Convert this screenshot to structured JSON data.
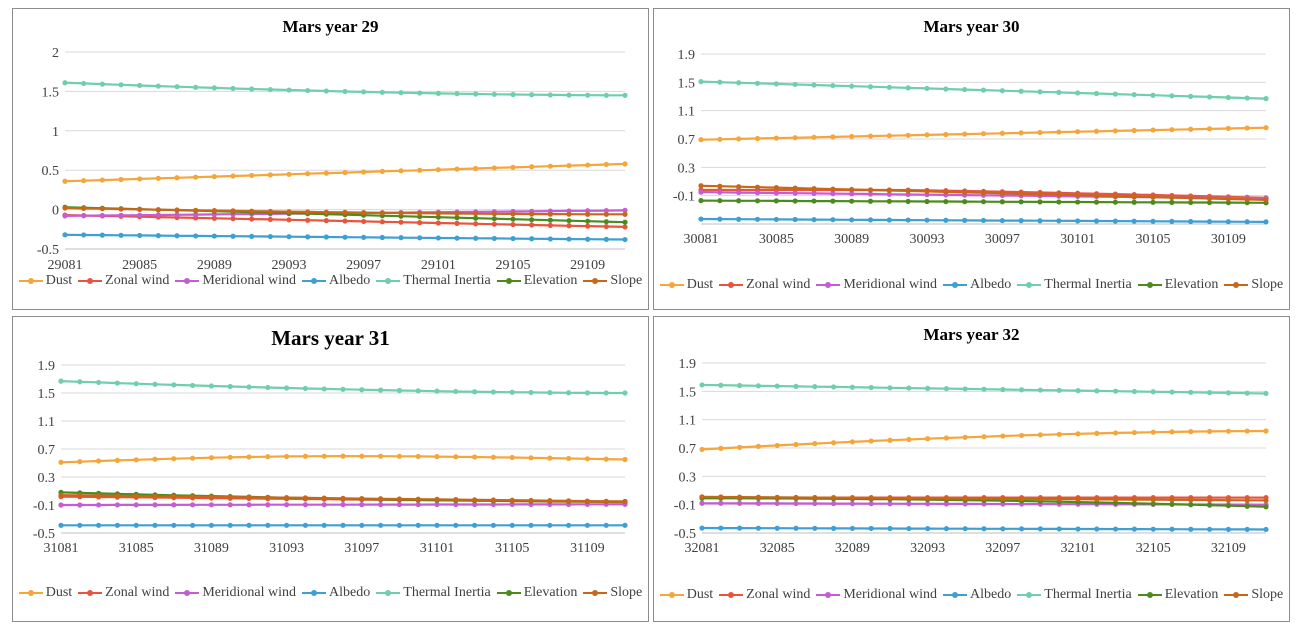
{
  "series_colors": {
    "Dust": "#f5a53a",
    "Zonal wind": "#e8553e",
    "Meridional wind": "#c65bd6",
    "Albedo": "#3e9fd2",
    "Thermal Inertia": "#6ecfaa",
    "Elevation": "#4c8a1e",
    "Slope": "#c8661a"
  },
  "chart_data": [
    {
      "type": "line",
      "title": "Mars year 29",
      "x": [
        29081,
        29082,
        29083,
        29084,
        29085,
        29086,
        29087,
        29088,
        29089,
        29090,
        29091,
        29092,
        29093,
        29094,
        29095,
        29096,
        29097,
        29098,
        29099,
        29100,
        29101,
        29102,
        29103,
        29104,
        29105,
        29106,
        29107,
        29108,
        29109,
        29110,
        29111
      ],
      "x_tick_labels": [
        "29081",
        "29085",
        "29089",
        "29093",
        "29097",
        "29101",
        "29105",
        "29109"
      ],
      "y_ticks": [
        -0.5,
        0,
        0.5,
        1,
        1.5,
        2
      ],
      "y_tick_labels": [
        "-0.5",
        "0",
        "0.5",
        "1",
        "1.5",
        "2"
      ],
      "ylim": [
        -0.5,
        2
      ],
      "grid": "horizontal",
      "legend": "bottom",
      "series": [
        {
          "name": "Dust",
          "start": 0.36,
          "end": 0.58,
          "shape": "linear"
        },
        {
          "name": "Zonal wind",
          "start": -0.07,
          "end": -0.22,
          "shape": "linear"
        },
        {
          "name": "Meridional wind",
          "start": -0.08,
          "end": -0.01,
          "shape": "linear"
        },
        {
          "name": "Albedo",
          "start": -0.32,
          "end": -0.38,
          "shape": "linear"
        },
        {
          "name": "Thermal Inertia",
          "start": 1.61,
          "end": 1.45,
          "shape": "decay"
        },
        {
          "name": "Elevation",
          "start": 0.03,
          "end": -0.16,
          "shape": "linear"
        },
        {
          "name": "Slope",
          "start": 0.02,
          "end": -0.06,
          "shape": "decay"
        }
      ]
    },
    {
      "type": "line",
      "title": "Mars year 30",
      "x": [
        30081,
        30082,
        30083,
        30084,
        30085,
        30086,
        30087,
        30088,
        30089,
        30090,
        30091,
        30092,
        30093,
        30094,
        30095,
        30096,
        30097,
        30098,
        30099,
        30100,
        30101,
        30102,
        30103,
        30104,
        30105,
        30106,
        30107,
        30108,
        30109,
        30110,
        30111
      ],
      "x_tick_labels": [
        "30081",
        "30085",
        "30089",
        "30093",
        "30097",
        "30101",
        "30105",
        "30109"
      ],
      "y_ticks": [
        -0.1,
        0.3,
        0.7,
        1.1,
        1.5,
        1.9
      ],
      "y_tick_labels": [
        "-0.1",
        "0.3",
        "0.7",
        "1.1",
        "1.5",
        "1.9"
      ],
      "ylim": [
        -0.5,
        1.9
      ],
      "grid": "horizontal",
      "legend": "bottom",
      "series": [
        {
          "name": "Dust",
          "start": 0.69,
          "end": 0.86,
          "shape": "linear"
        },
        {
          "name": "Zonal wind",
          "start": -0.02,
          "end": -0.13,
          "shape": "plateau"
        },
        {
          "name": "Meridional wind",
          "start": -0.05,
          "end": -0.14,
          "shape": "linear"
        },
        {
          "name": "Albedo",
          "start": -0.43,
          "end": -0.47,
          "shape": "linear"
        },
        {
          "name": "Thermal Inertia",
          "start": 1.51,
          "end": 1.27,
          "shape": "linear"
        },
        {
          "name": "Elevation",
          "start": -0.17,
          "end": -0.2,
          "shape": "linear"
        },
        {
          "name": "Slope",
          "start": 0.04,
          "end": -0.16,
          "shape": "linear"
        }
      ]
    },
    {
      "type": "line",
      "title": "Mars year 31",
      "x": [
        31081,
        31082,
        31083,
        31084,
        31085,
        31086,
        31087,
        31088,
        31089,
        31090,
        31091,
        31092,
        31093,
        31094,
        31095,
        31096,
        31097,
        31098,
        31099,
        31100,
        31101,
        31102,
        31103,
        31104,
        31105,
        31106,
        31107,
        31108,
        31109,
        31110,
        31111
      ],
      "x_tick_labels": [
        "31081",
        "31085",
        "31089",
        "31093",
        "31097",
        "31101",
        "31105",
        "31109"
      ],
      "y_ticks": [
        -0.5,
        -0.1,
        0.3,
        0.7,
        1.1,
        1.5,
        1.9
      ],
      "y_tick_labels": [
        "-0.5",
        "-0.1",
        "0.3",
        "0.7",
        "1.1",
        "1.5",
        "1.9"
      ],
      "ylim": [
        -0.5,
        1.9
      ],
      "grid": "horizontal",
      "legend": "bottom",
      "series": [
        {
          "name": "Dust",
          "start": 0.51,
          "end": 0.55,
          "shape": "hump"
        },
        {
          "name": "Zonal wind",
          "start": 0.02,
          "end": -0.06,
          "shape": "linear"
        },
        {
          "name": "Meridional wind",
          "start": -0.1,
          "end": -0.09,
          "shape": "linear"
        },
        {
          "name": "Albedo",
          "start": -0.39,
          "end": -0.39,
          "shape": "linear"
        },
        {
          "name": "Thermal Inertia",
          "start": 1.67,
          "end": 1.5,
          "shape": "decay"
        },
        {
          "name": "Elevation",
          "start": 0.08,
          "end": -0.05,
          "shape": "decay"
        },
        {
          "name": "Slope",
          "start": 0.04,
          "end": -0.05,
          "shape": "linear"
        }
      ]
    },
    {
      "type": "line",
      "title": "Mars year 32",
      "x": [
        32081,
        32082,
        32083,
        32084,
        32085,
        32086,
        32087,
        32088,
        32089,
        32090,
        32091,
        32092,
        32093,
        32094,
        32095,
        32096,
        32097,
        32098,
        32099,
        32100,
        32101,
        32102,
        32103,
        32104,
        32105,
        32106,
        32107,
        32108,
        32109,
        32110,
        32111
      ],
      "x_tick_labels": [
        "32081",
        "32085",
        "32089",
        "32093",
        "32097",
        "32101",
        "32105",
        "32109"
      ],
      "y_ticks": [
        -0.5,
        -0.1,
        0.3,
        0.7,
        1.1,
        1.5,
        1.9
      ],
      "y_tick_labels": [
        "-0.5",
        "-0.1",
        "0.3",
        "0.7",
        "1.1",
        "1.5",
        "1.9"
      ],
      "ylim": [
        -0.5,
        1.9
      ],
      "grid": "horizontal",
      "legend": "bottom",
      "series": [
        {
          "name": "Dust",
          "start": 0.68,
          "end": 0.94,
          "shape": "decay"
        },
        {
          "name": "Zonal wind",
          "start": 0.0,
          "end": 0.0,
          "shape": "linear"
        },
        {
          "name": "Meridional wind",
          "start": -0.08,
          "end": -0.1,
          "shape": "linear"
        },
        {
          "name": "Albedo",
          "start": -0.43,
          "end": -0.45,
          "shape": "linear"
        },
        {
          "name": "Thermal Inertia",
          "start": 1.59,
          "end": 1.47,
          "shape": "linear"
        },
        {
          "name": "Elevation",
          "start": -0.01,
          "end": -0.13,
          "shape": "late"
        },
        {
          "name": "Slope",
          "start": 0.01,
          "end": -0.04,
          "shape": "linear"
        }
      ]
    }
  ]
}
